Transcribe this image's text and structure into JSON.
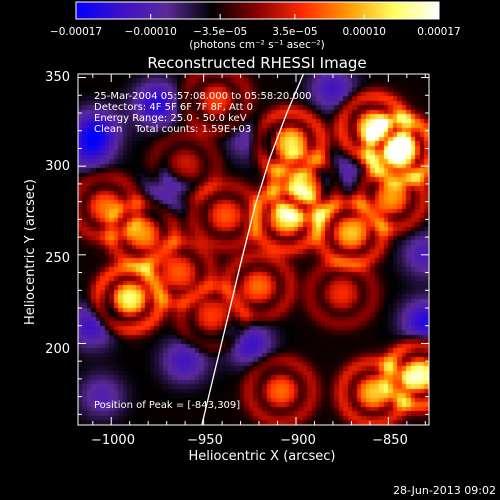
{
  "chart_data": {
    "type": "heatmap",
    "title": "Reconstructed RHESSI Image",
    "xlabel": "Heliocentric X (arcsec)",
    "ylabel": "Heliocentric Y (arcsec)",
    "xlim": [
      -1018,
      -828
    ],
    "ylim": [
      154,
      352
    ],
    "x_ticks": [
      -1000,
      -950,
      -900,
      -850
    ],
    "x_tick_labels": [
      "−1000",
      "−950",
      "−900",
      "−850"
    ],
    "y_ticks": [
      200,
      250,
      300,
      350
    ],
    "y_tick_labels": [
      "200",
      "250",
      "300",
      "350"
    ],
    "colorbar": {
      "range": [
        -0.00017,
        0.00017
      ],
      "ticks": [
        -0.00017,
        -0.0001,
        -3.5e-05,
        3.5e-05,
        0.0001,
        0.00017
      ],
      "tick_labels": [
        "−0.00017",
        "−0.00010",
        "−3.5e−05",
        "3.5e−05",
        "0.00010",
        "0.00017"
      ],
      "unit_label": "(photons cm⁻² s⁻¹ asec⁻²)",
      "colormap": [
        "#0000ff",
        "#3d10c8",
        "#5a2a9a",
        "#000000",
        "#8b0000",
        "#ff2a00",
        "#ff9a00",
        "#ffff60",
        "#ffffff"
      ]
    },
    "annotations": [
      "25-Mar-2004 05:57:08.000 to 05:58:20.000",
      "Detectors: 4F 5F 6F 7F 8F, Att 0",
      "Energy Range: 25.0 - 50.0 keV",
      "Clean    Total counts: 1.59E+03"
    ],
    "peak_label": "Position of Peak = [-843,309]",
    "limb_curve": {
      "x": [
        -951,
        -945,
        -938,
        -930,
        -922,
        -914,
        -905,
        -896
      ],
      "y": [
        154,
        180,
        210,
        245,
        278,
        305,
        330,
        352
      ]
    },
    "sources": [
      {
        "x": -990,
        "y": 225,
        "v": 1.0
      },
      {
        "x": -983,
        "y": 262,
        "v": 0.7
      },
      {
        "x": -1003,
        "y": 277,
        "v": 0.6
      },
      {
        "x": -963,
        "y": 240,
        "v": 0.55
      },
      {
        "x": -945,
        "y": 215,
        "v": 0.5
      },
      {
        "x": -920,
        "y": 232,
        "v": 0.6
      },
      {
        "x": -938,
        "y": 272,
        "v": 0.55
      },
      {
        "x": -943,
        "y": 337,
        "v": 0.5
      },
      {
        "x": -905,
        "y": 270,
        "v": 0.85
      },
      {
        "x": -903,
        "y": 313,
        "v": 0.9
      },
      {
        "x": -895,
        "y": 288,
        "v": 0.75
      },
      {
        "x": -870,
        "y": 262,
        "v": 0.8
      },
      {
        "x": -858,
        "y": 322,
        "v": 0.95
      },
      {
        "x": -843,
        "y": 309,
        "v": 1.2
      },
      {
        "x": -848,
        "y": 282,
        "v": 0.7
      },
      {
        "x": -833,
        "y": 182,
        "v": 1.1
      },
      {
        "x": -858,
        "y": 172,
        "v": 0.8
      },
      {
        "x": -908,
        "y": 173,
        "v": 0.6
      },
      {
        "x": -875,
        "y": 228,
        "v": 0.45
      },
      {
        "x": -960,
        "y": 300,
        "v": 0.4
      },
      {
        "x": -1008,
        "y": 320,
        "v": -0.55
      },
      {
        "x": -975,
        "y": 335,
        "v": -0.6
      },
      {
        "x": -1012,
        "y": 308,
        "v": -0.4
      },
      {
        "x": -1010,
        "y": 210,
        "v": -0.5
      },
      {
        "x": -970,
        "y": 285,
        "v": -0.5
      },
      {
        "x": -830,
        "y": 212,
        "v": -0.6
      },
      {
        "x": -925,
        "y": 200,
        "v": -0.5
      },
      {
        "x": -880,
        "y": 343,
        "v": -0.45
      },
      {
        "x": -875,
        "y": 295,
        "v": -0.4
      },
      {
        "x": -830,
        "y": 250,
        "v": -0.4
      },
      {
        "x": -1005,
        "y": 170,
        "v": -0.35
      },
      {
        "x": -960,
        "y": 190,
        "v": -0.45
      },
      {
        "x": -925,
        "y": 315,
        "v": -0.35
      }
    ]
  },
  "footer": {
    "timestamp": "28-Jun-2013 09:02"
  }
}
